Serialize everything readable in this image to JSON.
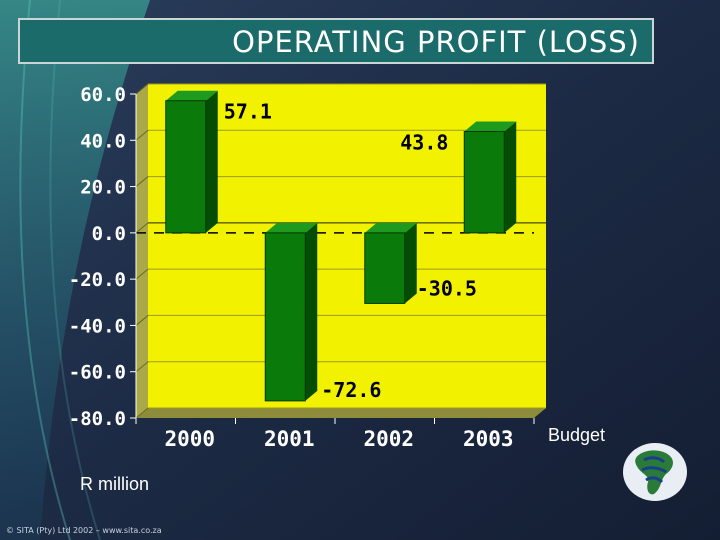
{
  "slide": {
    "title": "OPERATING PROFIT (LOSS)",
    "unit_label": "R million",
    "budget_label": "Budget",
    "footer": "© SITA (Pty) Ltd 2002 – www.sita.co.za",
    "colors": {
      "background": "#1f2c44",
      "title_bar": "#1b6b6b",
      "plot_area": "#f2f200",
      "bar": "#0a7a0a"
    }
  },
  "chart_data": {
    "type": "bar",
    "title": "OPERATING PROFIT (LOSS)",
    "categories": [
      "2000",
      "2001",
      "2002",
      "2003"
    ],
    "values": [
      57.1,
      -72.6,
      -30.5,
      43.8
    ],
    "data_labels": [
      "57.1",
      "-72.6",
      "-30.5",
      "43.8"
    ],
    "yticks": [
      "60.0",
      "40.0",
      "20.0",
      "0.0",
      "-20.0",
      "-40.0",
      "-60.0",
      "-80.0"
    ],
    "ylim": [
      -80,
      60
    ],
    "xlabel": "",
    "ylabel": "R million",
    "grid": true,
    "legend": "none"
  }
}
